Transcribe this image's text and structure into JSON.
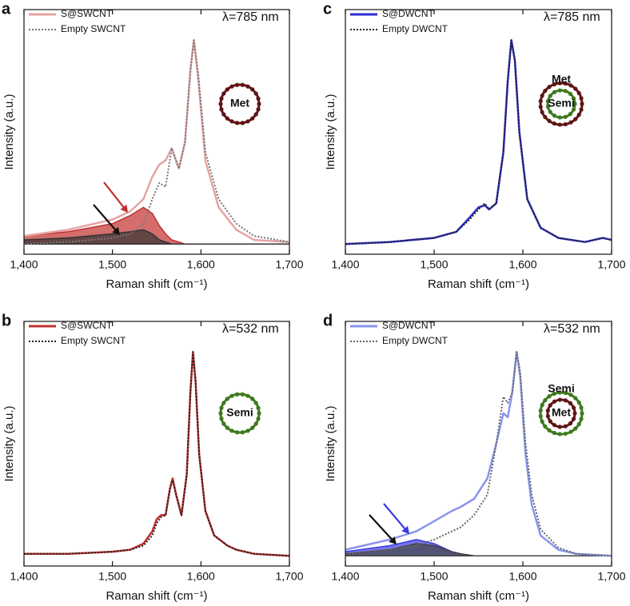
{
  "chart_data": [
    {
      "type": "line",
      "panel": "a",
      "annotation": "λ=785 nm",
      "x_label": "Raman shift (cm⁻¹)",
      "y_label": "Intensity (a.u.)",
      "xlim": [
        1400,
        1700
      ],
      "ylim": [
        -0.05,
        1.15
      ],
      "xticks": [
        {
          "value": 1400,
          "label": "1,400"
        },
        {
          "value": 1500,
          "label": "1,500"
        },
        {
          "value": 1600,
          "label": "1,600"
        },
        {
          "value": 1700,
          "label": "1,700"
        }
      ],
      "x": [
        1400,
        1450,
        1500,
        1520,
        1535,
        1545,
        1553,
        1560,
        1567,
        1575,
        1582,
        1588,
        1592,
        1597,
        1605,
        1620,
        1640,
        1660,
        1700
      ],
      "series": [
        {
          "color": "#c0302f",
          "fill": true,
          "values": [
            0.04,
            0.06,
            0.1,
            0.14,
            0.18,
            0.15,
            0.09,
            0.05,
            0.02,
            0.01,
            0,
            0,
            0,
            0,
            0,
            0,
            0,
            0,
            0
          ]
        },
        {
          "color": "#333333",
          "fill": true,
          "values": [
            0.02,
            0.03,
            0.05,
            0.06,
            0.07,
            0.05,
            0.02,
            0.01,
            0,
            0,
            0,
            0,
            0,
            0,
            0,
            0,
            0,
            0,
            0
          ]
        },
        {
          "name": "S@SWCNT",
          "color": "#e6a3a3",
          "values": [
            0.04,
            0.07,
            0.12,
            0.16,
            0.22,
            0.33,
            0.39,
            0.41,
            0.47,
            0.37,
            0.5,
            0.85,
            1,
            0.81,
            0.41,
            0.18,
            0.07,
            0.02,
            0.01
          ]
        },
        {
          "name": "Empty SWCNT",
          "color": "#777777",
          "dash": true,
          "values": [
            0,
            0.01,
            0.03,
            0.05,
            0.1,
            0.22,
            0.3,
            0.28,
            0.47,
            0.37,
            0.5,
            0.85,
            1,
            0.83,
            0.45,
            0.22,
            0.1,
            0.04,
            0.01
          ]
        }
      ],
      "rings": [
        {
          "label": "Met",
          "color": "#5e1414"
        }
      ]
    },
    {
      "type": "line",
      "panel": "b",
      "annotation": "λ=532 nm",
      "x_label": "Raman shift (cm⁻¹)",
      "y_label": "Intensity (a.u.)",
      "xlim": [
        1400,
        1700
      ],
      "ylim": [
        -0.05,
        1.15
      ],
      "xticks": [
        {
          "value": 1400,
          "label": "1,400"
        },
        {
          "value": 1500,
          "label": "1,500"
        },
        {
          "value": 1600,
          "label": "1,600"
        },
        {
          "value": 1700,
          "label": "1,700"
        }
      ],
      "x": [
        1400,
        1450,
        1500,
        1520,
        1535,
        1545,
        1550,
        1555,
        1560,
        1565,
        1568,
        1572,
        1578,
        1584,
        1588,
        1591,
        1594,
        1598,
        1605,
        1615,
        1630,
        1640,
        1660,
        1700
      ],
      "series": [
        {
          "name": "S@SWCNT",
          "color": "#c0302f",
          "values": [
            0.01,
            0.01,
            0.02,
            0.03,
            0.06,
            0.12,
            0.18,
            0.2,
            0.2,
            0.33,
            0.38,
            0.3,
            0.2,
            0.4,
            0.8,
            1,
            0.85,
            0.5,
            0.22,
            0.1,
            0.05,
            0.03,
            0.01,
            0
          ]
        },
        {
          "name": "Empty SWCNT",
          "color": "#222222",
          "dash": true,
          "values": [
            0.01,
            0.01,
            0.02,
            0.03,
            0.05,
            0.1,
            0.16,
            0.19,
            0.2,
            0.33,
            0.37,
            0.3,
            0.2,
            0.4,
            0.8,
            1,
            0.85,
            0.5,
            0.22,
            0.1,
            0.05,
            0.03,
            0.01,
            0
          ]
        }
      ],
      "rings": [
        {
          "label": "Semi",
          "color": "#3d7a1e"
        }
      ]
    },
    {
      "type": "line",
      "panel": "c",
      "annotation": "λ=785 nm",
      "x_label": "Raman shift (cm⁻¹)",
      "y_label": "Intensity (a.u.)",
      "xlim": [
        1400,
        1700
      ],
      "ylim": [
        -0.05,
        1.15
      ],
      "xticks": [
        {
          "value": 1400,
          "label": "1,400"
        },
        {
          "value": 1500,
          "label": "1,500"
        },
        {
          "value": 1600,
          "label": "1,600"
        },
        {
          "value": 1700,
          "label": "1,700"
        }
      ],
      "x": [
        1400,
        1450,
        1500,
        1525,
        1540,
        1550,
        1557,
        1562,
        1570,
        1578,
        1583,
        1587,
        1591,
        1596,
        1605,
        1620,
        1640,
        1670,
        1690,
        1700
      ],
      "series": [
        {
          "name": "S@DWCNT",
          "color": "#2b2bd0",
          "values": [
            0,
            0.01,
            0.03,
            0.06,
            0.13,
            0.18,
            0.19,
            0.17,
            0.2,
            0.45,
            0.8,
            1,
            0.9,
            0.55,
            0.22,
            0.08,
            0.03,
            0.01,
            0.03,
            0.02
          ]
        },
        {
          "name": "Empty DWCNT",
          "color": "#222222",
          "dash": true,
          "values": [
            0,
            0.01,
            0.03,
            0.06,
            0.12,
            0.17,
            0.2,
            0.17,
            0.2,
            0.45,
            0.8,
            1,
            0.9,
            0.55,
            0.22,
            0.08,
            0.03,
            0.01,
            0.03,
            0.02
          ]
        }
      ],
      "rings": [
        {
          "label": "Met",
          "color": "#5e1414"
        },
        {
          "label": "Semi",
          "color": "#3d7a1e"
        }
      ]
    },
    {
      "type": "line",
      "panel": "d",
      "annotation": "λ=532 nm",
      "x_label": "Raman shift (cm⁻¹)",
      "y_label": "Intensity (a.u.)",
      "xlim": [
        1400,
        1700
      ],
      "ylim": [
        -0.05,
        1.15
      ],
      "xticks": [
        {
          "value": 1400,
          "label": "1,400"
        },
        {
          "value": 1500,
          "label": "1,500"
        },
        {
          "value": 1600,
          "label": "1,600"
        },
        {
          "value": 1700,
          "label": "1,700"
        }
      ],
      "x": [
        1400,
        1450,
        1480,
        1500,
        1520,
        1530,
        1545,
        1560,
        1570,
        1578,
        1583,
        1588,
        1593,
        1597,
        1603,
        1610,
        1620,
        1640,
        1660,
        1700
      ],
      "series": [
        {
          "color": "#3a3ae0",
          "fill": true,
          "values": [
            0.02,
            0.05,
            0.08,
            0.06,
            0.02,
            0.01,
            0,
            0,
            0,
            0,
            0,
            0,
            0,
            0,
            0,
            0,
            0,
            0,
            0,
            0
          ]
        },
        {
          "color": "#444444",
          "fill": true,
          "values": [
            0.01,
            0.03,
            0.06,
            0.05,
            0.02,
            0.01,
            0,
            0,
            0,
            0,
            0,
            0,
            0,
            0,
            0,
            0,
            0,
            0,
            0,
            0
          ]
        },
        {
          "name": "S@DWCNT",
          "color": "#8a94ec",
          "values": [
            0.03,
            0.08,
            0.12,
            0.17,
            0.22,
            0.24,
            0.28,
            0.38,
            0.55,
            0.7,
            0.68,
            0.8,
            1,
            0.88,
            0.5,
            0.25,
            0.1,
            0.03,
            0.01,
            0
          ]
        },
        {
          "name": "Empty DWCNT",
          "color": "#666666",
          "dash": true,
          "values": [
            0.01,
            0.03,
            0.05,
            0.08,
            0.12,
            0.14,
            0.2,
            0.3,
            0.55,
            0.78,
            0.75,
            0.8,
            1,
            0.9,
            0.55,
            0.3,
            0.13,
            0.04,
            0.01,
            0
          ]
        }
      ],
      "rings": [
        {
          "label": "Semi",
          "color": "#3d7a1e"
        },
        {
          "label": "Met",
          "color": "#5e1414"
        }
      ]
    }
  ]
}
